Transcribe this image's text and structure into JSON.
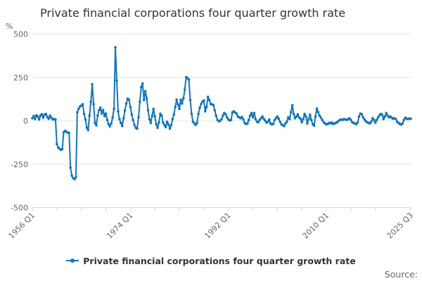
{
  "title": "Private financial corporations four quarter growth rate",
  "legend": {
    "label": "Private financial corporations four quarter growth rate"
  },
  "source": {
    "label": "Source:"
  },
  "colors": {
    "series": "#1575b6",
    "gridline": "#e6e6e6",
    "axis_line": "#ccd6eb",
    "tick_text": "#666666",
    "title_text": "#333333"
  },
  "chart_data": {
    "type": "line",
    "title": "Private financial corporations four quarter growth rate",
    "xlabel": "",
    "ylabel": "%",
    "unit_label": "%",
    "ylim": [
      -500,
      500
    ],
    "y_ticks": [
      500,
      250,
      0,
      -250,
      -500
    ],
    "grid": "horizontal",
    "legend_position": "bottom-center",
    "marker": "circle",
    "frequency": "quarterly",
    "x_start": "1956 Q1",
    "x_end": "2025 Q3",
    "x_labeled_ticks": [
      {
        "label": "1956 Q1",
        "q": 0
      },
      {
        "label": "1974 Q1",
        "q": 72
      },
      {
        "label": "1992 Q1",
        "q": 144
      },
      {
        "label": "2010 Q1",
        "q": 216
      },
      {
        "label": "2025 Q3",
        "q": 278
      }
    ],
    "x_minor_tick_step_quarters": 18,
    "series": [
      {
        "name": "Private financial corporations four quarter growth rate",
        "values": [
          15,
          28,
          10,
          32,
          25,
          8,
          30,
          38,
          18,
          35,
          40,
          22,
          12,
          30,
          18,
          8,
          10,
          8,
          -134,
          -154,
          -161,
          -167,
          -163,
          -66,
          -58,
          -62,
          -68,
          -70,
          -269,
          -316,
          -330,
          -336,
          -325,
          49,
          69,
          82,
          88,
          96,
          40,
          8,
          -39,
          -53,
          30,
          110,
          211,
          96,
          -12,
          -26,
          30,
          62,
          76,
          42,
          62,
          28,
          42,
          5,
          -20,
          -32,
          -15,
          20,
          69,
          424,
          232,
          55,
          10,
          -12,
          -30,
          15,
          60,
          100,
          128,
          122,
          80,
          37,
          5,
          -24,
          -40,
          -45,
          20,
          110,
          195,
          215,
          120,
          171,
          130,
          60,
          10,
          -12,
          30,
          69,
          25,
          -20,
          -40,
          -10,
          41,
          30,
          -10,
          -24,
          -36,
          -5,
          -20,
          -45,
          -25,
          10,
          37,
          80,
          122,
          95,
          69,
          122,
          100,
          130,
          180,
          252,
          245,
          238,
          120,
          41,
          -5,
          -15,
          -24,
          -12,
          40,
          75,
          97,
          110,
          117,
          55,
          80,
          138,
          120,
          97,
          95,
          90,
          60,
          29,
          5,
          -2,
          0,
          10,
          30,
          45,
          38,
          20,
          8,
          2,
          5,
          49,
          55,
          48,
          42,
          25,
          20,
          15,
          22,
          8,
          -12,
          -18,
          -15,
          5,
          30,
          45,
          20,
          45,
          10,
          -5,
          -8,
          5,
          15,
          25,
          12,
          2,
          -10,
          -5,
          8,
          -15,
          -20,
          -18,
          5,
          15,
          25,
          12,
          -5,
          -20,
          -25,
          -30,
          -15,
          -5,
          20,
          10,
          50,
          90,
          40,
          15,
          25,
          37,
          20,
          12,
          -8,
          10,
          40,
          25,
          -15,
          10,
          35,
          5,
          -20,
          -28,
          25,
          70,
          50,
          30,
          18,
          5,
          -8,
          -15,
          -20,
          -18,
          -12,
          -15,
          -10,
          -18,
          -15,
          -12,
          -8,
          0,
          5,
          8,
          5,
          10,
          8,
          5,
          10,
          15,
          5,
          -8,
          -12,
          -15,
          -20,
          -10,
          25,
          42,
          38,
          20,
          8,
          -2,
          -8,
          -12,
          -15,
          -5,
          15,
          5,
          -10,
          5,
          20,
          32,
          40,
          35,
          10,
          25,
          45,
          30,
          20,
          25,
          18,
          12,
          15,
          10,
          -5,
          -12,
          -18,
          -22,
          -15,
          5,
          18,
          12,
          10,
          14,
          12
        ]
      }
    ]
  }
}
